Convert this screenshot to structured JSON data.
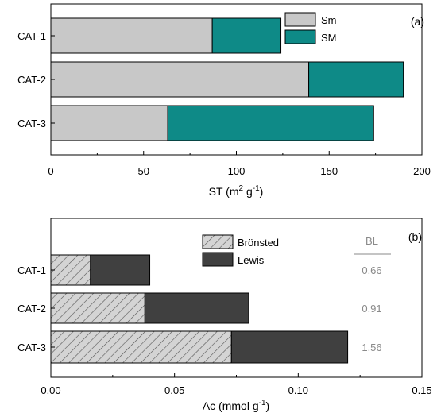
{
  "chart_data": [
    {
      "type": "bar",
      "orientation": "horizontal",
      "stacked": true,
      "panel_label": "(a)",
      "categories": [
        "CAT-1",
        "CAT-2",
        "CAT-3"
      ],
      "series": [
        {
          "name": "Sm",
          "values": [
            87,
            139,
            63
          ],
          "color": "#c8c8c8"
        },
        {
          "name": "SM",
          "values": [
            37,
            51,
            111
          ],
          "color": "#0e8a87"
        }
      ],
      "xlabel": "ST (m",
      "xlabel_sup1": "2",
      "xlabel_mid": " g",
      "xlabel_sup2": "-1",
      "xlabel_end": ")",
      "xlim": [
        0,
        200
      ],
      "xticks": [
        "0",
        "50",
        "100",
        "150",
        "200"
      ],
      "legend_placement": "top-right",
      "grid": false
    },
    {
      "type": "bar",
      "orientation": "horizontal",
      "stacked": true,
      "panel_label": "(b)",
      "categories": [
        "CAT-1",
        "CAT-2",
        "CAT-3"
      ],
      "series": [
        {
          "name": "Brönsted",
          "values": [
            0.016,
            0.038,
            0.073
          ],
          "color": "#d0d0d0",
          "pattern": "hatch"
        },
        {
          "name": "Lewis",
          "values": [
            0.024,
            0.042,
            0.047
          ],
          "color": "#404040"
        }
      ],
      "annotation_header": "BL",
      "annotations": [
        "0.66",
        "0.91",
        "1.56"
      ],
      "xlabel": "Ac (mmol g",
      "xlabel_sup": "-1",
      "xlabel_end": ")",
      "xlim": [
        0,
        0.15
      ],
      "xticks": [
        "0.00",
        "0.05",
        "0.10",
        "0.15"
      ],
      "legend_placement": "top-center",
      "grid": false
    }
  ]
}
